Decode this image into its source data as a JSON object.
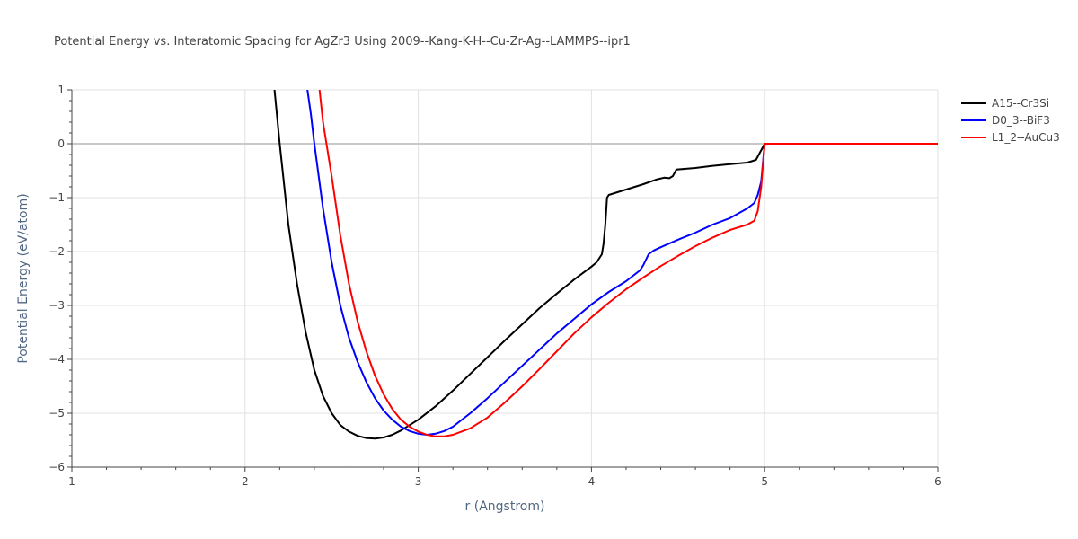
{
  "chart_data": {
    "type": "line",
    "title": "Potential Energy vs. Interatomic Spacing for AgZr3 Using 2009--Kang-K-H--Cu-Zr-Ag--LAMMPS--ipr1",
    "xlabel": "r (Angstrom)",
    "ylabel": "Potential Energy (eV/atom)",
    "xlim": [
      1,
      6
    ],
    "ylim": [
      -6,
      1
    ],
    "xticks": [
      "1",
      "2",
      "3",
      "4",
      "5",
      "6"
    ],
    "yticks": [
      "1",
      "0",
      "−1",
      "−2",
      "−3",
      "−4",
      "−5",
      "−6"
    ],
    "grid": true,
    "legend_position": "top-right",
    "series": [
      {
        "name": "A15--Cr3Si",
        "color": "#000000",
        "points": [
          [
            2.17,
            1.0
          ],
          [
            2.2,
            0.0
          ],
          [
            2.25,
            -1.5
          ],
          [
            2.3,
            -2.6
          ],
          [
            2.35,
            -3.5
          ],
          [
            2.4,
            -4.2
          ],
          [
            2.45,
            -4.68
          ],
          [
            2.5,
            -5.0
          ],
          [
            2.55,
            -5.22
          ],
          [
            2.6,
            -5.34
          ],
          [
            2.65,
            -5.42
          ],
          [
            2.7,
            -5.46
          ],
          [
            2.75,
            -5.47
          ],
          [
            2.8,
            -5.45
          ],
          [
            2.85,
            -5.4
          ],
          [
            2.9,
            -5.32
          ],
          [
            3.0,
            -5.12
          ],
          [
            3.1,
            -4.87
          ],
          [
            3.2,
            -4.58
          ],
          [
            3.3,
            -4.27
          ],
          [
            3.4,
            -3.96
          ],
          [
            3.5,
            -3.65
          ],
          [
            3.6,
            -3.35
          ],
          [
            3.7,
            -3.05
          ],
          [
            3.8,
            -2.78
          ],
          [
            3.9,
            -2.52
          ],
          [
            4.0,
            -2.28
          ],
          [
            4.03,
            -2.2
          ],
          [
            4.06,
            -2.05
          ],
          [
            4.07,
            -1.85
          ],
          [
            4.08,
            -1.5
          ],
          [
            4.09,
            -1.0
          ],
          [
            4.1,
            -0.95
          ],
          [
            4.15,
            -0.9
          ],
          [
            4.2,
            -0.85
          ],
          [
            4.3,
            -0.75
          ],
          [
            4.38,
            -0.66
          ],
          [
            4.42,
            -0.63
          ],
          [
            4.45,
            -0.64
          ],
          [
            4.47,
            -0.6
          ],
          [
            4.49,
            -0.48
          ],
          [
            4.6,
            -0.45
          ],
          [
            4.7,
            -0.41
          ],
          [
            4.8,
            -0.38
          ],
          [
            4.9,
            -0.35
          ],
          [
            4.95,
            -0.3
          ],
          [
            5.0,
            0.0
          ],
          [
            5.5,
            0.0
          ],
          [
            6.0,
            0.0
          ]
        ]
      },
      {
        "name": "D0_3--BiF3",
        "color": "#0000ff",
        "points": [
          [
            2.36,
            1.0
          ],
          [
            2.38,
            0.55
          ],
          [
            2.4,
            0.0
          ],
          [
            2.45,
            -1.2
          ],
          [
            2.5,
            -2.2
          ],
          [
            2.55,
            -3.0
          ],
          [
            2.6,
            -3.6
          ],
          [
            2.65,
            -4.05
          ],
          [
            2.7,
            -4.42
          ],
          [
            2.75,
            -4.72
          ],
          [
            2.8,
            -4.95
          ],
          [
            2.85,
            -5.12
          ],
          [
            2.9,
            -5.25
          ],
          [
            2.95,
            -5.33
          ],
          [
            3.0,
            -5.38
          ],
          [
            3.05,
            -5.4
          ],
          [
            3.1,
            -5.38
          ],
          [
            3.15,
            -5.33
          ],
          [
            3.2,
            -5.25
          ],
          [
            3.3,
            -5.0
          ],
          [
            3.4,
            -4.72
          ],
          [
            3.5,
            -4.42
          ],
          [
            3.6,
            -4.12
          ],
          [
            3.7,
            -3.82
          ],
          [
            3.8,
            -3.52
          ],
          [
            3.9,
            -3.25
          ],
          [
            4.0,
            -2.98
          ],
          [
            4.1,
            -2.75
          ],
          [
            4.2,
            -2.55
          ],
          [
            4.28,
            -2.35
          ],
          [
            4.3,
            -2.25
          ],
          [
            4.33,
            -2.05
          ],
          [
            4.36,
            -1.98
          ],
          [
            4.4,
            -1.92
          ],
          [
            4.5,
            -1.78
          ],
          [
            4.6,
            -1.65
          ],
          [
            4.7,
            -1.5
          ],
          [
            4.8,
            -1.38
          ],
          [
            4.9,
            -1.2
          ],
          [
            4.94,
            -1.1
          ],
          [
            4.96,
            -0.95
          ],
          [
            4.98,
            -0.7
          ],
          [
            5.0,
            0.0
          ],
          [
            5.5,
            0.0
          ],
          [
            6.0,
            0.0
          ]
        ]
      },
      {
        "name": "L1_2--AuCu3",
        "color": "#ff0000",
        "points": [
          [
            2.43,
            1.0
          ],
          [
            2.45,
            0.4
          ],
          [
            2.47,
            0.0
          ],
          [
            2.5,
            -0.6
          ],
          [
            2.55,
            -1.7
          ],
          [
            2.6,
            -2.6
          ],
          [
            2.65,
            -3.3
          ],
          [
            2.7,
            -3.85
          ],
          [
            2.75,
            -4.3
          ],
          [
            2.8,
            -4.65
          ],
          [
            2.85,
            -4.92
          ],
          [
            2.9,
            -5.12
          ],
          [
            2.95,
            -5.25
          ],
          [
            3.0,
            -5.34
          ],
          [
            3.05,
            -5.4
          ],
          [
            3.1,
            -5.43
          ],
          [
            3.15,
            -5.43
          ],
          [
            3.2,
            -5.4
          ],
          [
            3.3,
            -5.28
          ],
          [
            3.4,
            -5.08
          ],
          [
            3.5,
            -4.8
          ],
          [
            3.6,
            -4.5
          ],
          [
            3.7,
            -4.18
          ],
          [
            3.8,
            -3.85
          ],
          [
            3.9,
            -3.52
          ],
          [
            4.0,
            -3.22
          ],
          [
            4.1,
            -2.95
          ],
          [
            4.2,
            -2.7
          ],
          [
            4.3,
            -2.48
          ],
          [
            4.4,
            -2.27
          ],
          [
            4.5,
            -2.08
          ],
          [
            4.6,
            -1.9
          ],
          [
            4.7,
            -1.74
          ],
          [
            4.8,
            -1.6
          ],
          [
            4.9,
            -1.5
          ],
          [
            4.94,
            -1.43
          ],
          [
            4.96,
            -1.25
          ],
          [
            4.98,
            -0.8
          ],
          [
            5.0,
            0.0
          ],
          [
            5.5,
            0.0
          ],
          [
            6.0,
            0.0
          ]
        ]
      }
    ]
  }
}
